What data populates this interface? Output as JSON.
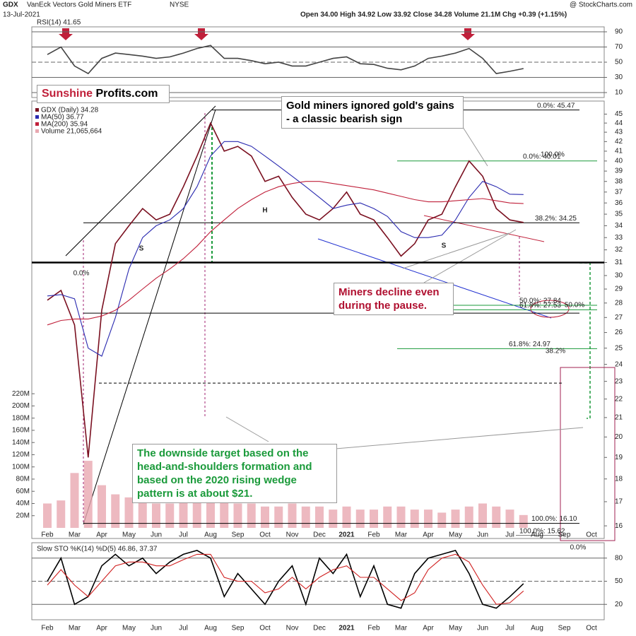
{
  "header": {
    "symbol": "GDX",
    "name": "VanEck Vectors Gold Miners ETF",
    "exchange": "NYSE",
    "date": "13-Jul-2021",
    "quote": "Open 34.00  High 34.92  Low 33.92  Close 34.28  Volume 21.1M  Chg +0.39 (+1.15%)",
    "source": "@ StockCharts.com"
  },
  "logo": {
    "left": "Sunshine",
    "right": "Profits.com"
  },
  "callouts": [
    "Gold miners ignored gold's gains - a classic bearish sign",
    "Miners decline even during the pause.",
    "The downside target based on the head-and-shoulders formation and based on the 2020 rising wedge pattern is at about $21."
  ],
  "chart_data": [
    {
      "type": "line",
      "title": "RSI(14) 41.65",
      "ylim": [
        3.5,
        96.5
      ],
      "yticks": [
        10,
        30,
        50,
        70,
        90
      ],
      "grid": true,
      "series": [
        {
          "color": "#444444",
          "values": [
            60,
            70,
            45,
            35,
            55,
            62,
            60,
            58,
            55,
            57,
            62,
            68,
            72,
            55,
            55,
            52,
            48,
            50,
            45,
            45,
            50,
            55,
            57,
            48,
            47,
            42,
            40,
            45,
            55,
            58,
            62,
            68,
            55,
            35,
            38,
            41.65,
            null,
            null,
            null,
            null,
            null,
            null
          ]
        }
      ]
    },
    {
      "type": "line",
      "log_scale": true,
      "ylim": [
        15.5,
        46.5
      ],
      "yticks": [
        16,
        17,
        18,
        19,
        20,
        21,
        22,
        23,
        24,
        25,
        26,
        27,
        28,
        29,
        30,
        31,
        32,
        33,
        34,
        35,
        36,
        37,
        38,
        39,
        40,
        41,
        42,
        43,
        44,
        45
      ],
      "categories": [
        "Feb",
        null,
        "Mar",
        null,
        "Apr",
        null,
        "May",
        null,
        "Jun",
        null,
        "Jul",
        null,
        "Aug",
        null,
        "Sep",
        null,
        "Oct",
        null,
        "Nov",
        null,
        "Dec",
        null,
        "2021",
        null,
        "Feb",
        null,
        "Mar",
        null,
        "Apr",
        null,
        "May",
        null,
        "Jun",
        null,
        "Jul",
        null,
        "Aug",
        null,
        "Sep",
        null,
        "Oct",
        null
      ],
      "series": [
        {
          "name": "GDX (Daily) 34.28",
          "color": "#7a1020",
          "values": [
            28.2,
            28.9,
            26.5,
            19.0,
            27.5,
            32.5,
            34.0,
            35.5,
            34.5,
            35.0,
            37.5,
            40.5,
            44.0,
            41.0,
            41.5,
            40.5,
            38.0,
            38.5,
            36.5,
            35.0,
            34.5,
            35.5,
            37.0,
            35.0,
            34.5,
            33.0,
            31.5,
            32.5,
            34.5,
            35.0,
            37.5,
            40.0,
            38.5,
            35.5,
            34.5,
            34.28,
            null,
            null,
            null,
            null,
            null,
            null
          ]
        },
        {
          "name": "MA(50) 36.77",
          "color": "#2a2ab0",
          "values": [
            28.5,
            28.6,
            28.3,
            25,
            24.5,
            27,
            30.5,
            33,
            34,
            34.5,
            35.5,
            37.5,
            40.5,
            42,
            42,
            41.5,
            40.5,
            39.5,
            38.5,
            37.5,
            36.5,
            35.5,
            35.8,
            36,
            35.5,
            34.8,
            33.5,
            33,
            33,
            33.2,
            34.5,
            36.5,
            38,
            37.5,
            36.8,
            36.77,
            null,
            null,
            null,
            null,
            null,
            null
          ]
        },
        {
          "name": "MA(200) 35.94",
          "color": "#c0203a",
          "values": [
            26.5,
            26.8,
            26.9,
            26.9,
            27.1,
            27.5,
            28.2,
            29,
            29.8,
            30.5,
            31.3,
            32.3,
            33.5,
            34.5,
            35.5,
            36.3,
            37,
            37.5,
            37.8,
            38,
            38,
            37.8,
            37.6,
            37.4,
            37.2,
            36.9,
            36.6,
            36.3,
            36.1,
            36.1,
            36.2,
            36.3,
            36.4,
            36.2,
            36.0,
            35.94,
            null,
            null,
            null,
            null,
            null,
            null
          ]
        }
      ],
      "volume": {
        "name": "Volume 21,065,664",
        "color": "#e8a8b0",
        "ylim": [
          0,
          700000000
        ],
        "ticks": [
          {
            "value": 20000000,
            "label": "20M"
          },
          {
            "value": 40000000,
            "label": "40M"
          },
          {
            "value": 60000000,
            "label": "60M"
          },
          {
            "value": 80000000,
            "label": "80M"
          },
          {
            "value": 100000000,
            "label": "100M"
          },
          {
            "value": 120000000,
            "label": "120M"
          },
          {
            "value": 140000000,
            "label": "140M"
          },
          {
            "value": 160000000,
            "label": "160M"
          },
          {
            "value": 180000000,
            "label": "180M"
          },
          {
            "value": 200000000,
            "label": "200M"
          },
          {
            "value": 220000000,
            "label": "220M"
          }
        ],
        "values": [
          40000000,
          45000000,
          90000000,
          110000000,
          70000000,
          55000000,
          50000000,
          45000000,
          40000000,
          40000000,
          45000000,
          55000000,
          70000000,
          50000000,
          40000000,
          40000000,
          35000000,
          35000000,
          40000000,
          35000000,
          35000000,
          30000000,
          35000000,
          30000000,
          30000000,
          35000000,
          35000000,
          30000000,
          30000000,
          25000000,
          30000000,
          35000000,
          40000000,
          35000000,
          30000000,
          21065664,
          null,
          null,
          null,
          null,
          null,
          null
        ]
      },
      "fib_levels": [
        {
          "value": 45.47,
          "label": "0.0%: 45.47"
        },
        {
          "value": 40.01,
          "label": "0.0%: 40.01"
        },
        {
          "value": 34.25,
          "label": "38.2%: 34.25"
        },
        {
          "value": 27.84,
          "label": "50.0%: 27.84"
        },
        {
          "value": 27.53,
          "label": "61.8%: 27.53"
        },
        {
          "value": 24.97,
          "label": "61.8%: 24.97"
        },
        {
          "value": 16.1,
          "label": "100.0%: 16.10"
        },
        {
          "value": 15.62,
          "label": "100.0%: 15.62"
        }
      ],
      "levels": [
        31,
        27.3,
        22.9
      ],
      "notes": [
        "H",
        "S",
        "S",
        "100.0%",
        "38.2%",
        "50.0%",
        "0.0%",
        "0.0%"
      ]
    },
    {
      "type": "line",
      "title": "Slow STO %K(14) %D(5) 46.86, 37.37",
      "ylim": [
        0,
        100
      ],
      "yticks": [
        20,
        50,
        80
      ],
      "grid": true,
      "series": [
        {
          "color": "#000000",
          "values": [
            50,
            80,
            20,
            30,
            70,
            85,
            70,
            80,
            60,
            75,
            85,
            90,
            80,
            30,
            60,
            40,
            20,
            50,
            70,
            20,
            80,
            60,
            85,
            30,
            70,
            20,
            15,
            60,
            80,
            85,
            90,
            60,
            20,
            15,
            30,
            46.86,
            null,
            null,
            null,
            null,
            null,
            null
          ]
        },
        {
          "color": "#d02020",
          "values": [
            45,
            65,
            45,
            30,
            50,
            70,
            75,
            75,
            70,
            70,
            78,
            85,
            85,
            55,
            50,
            50,
            35,
            40,
            55,
            40,
            55,
            65,
            70,
            55,
            55,
            40,
            25,
            35,
            65,
            80,
            85,
            75,
            45,
            20,
            22,
            37.37,
            null,
            null,
            null,
            null,
            null,
            null
          ]
        }
      ]
    }
  ]
}
